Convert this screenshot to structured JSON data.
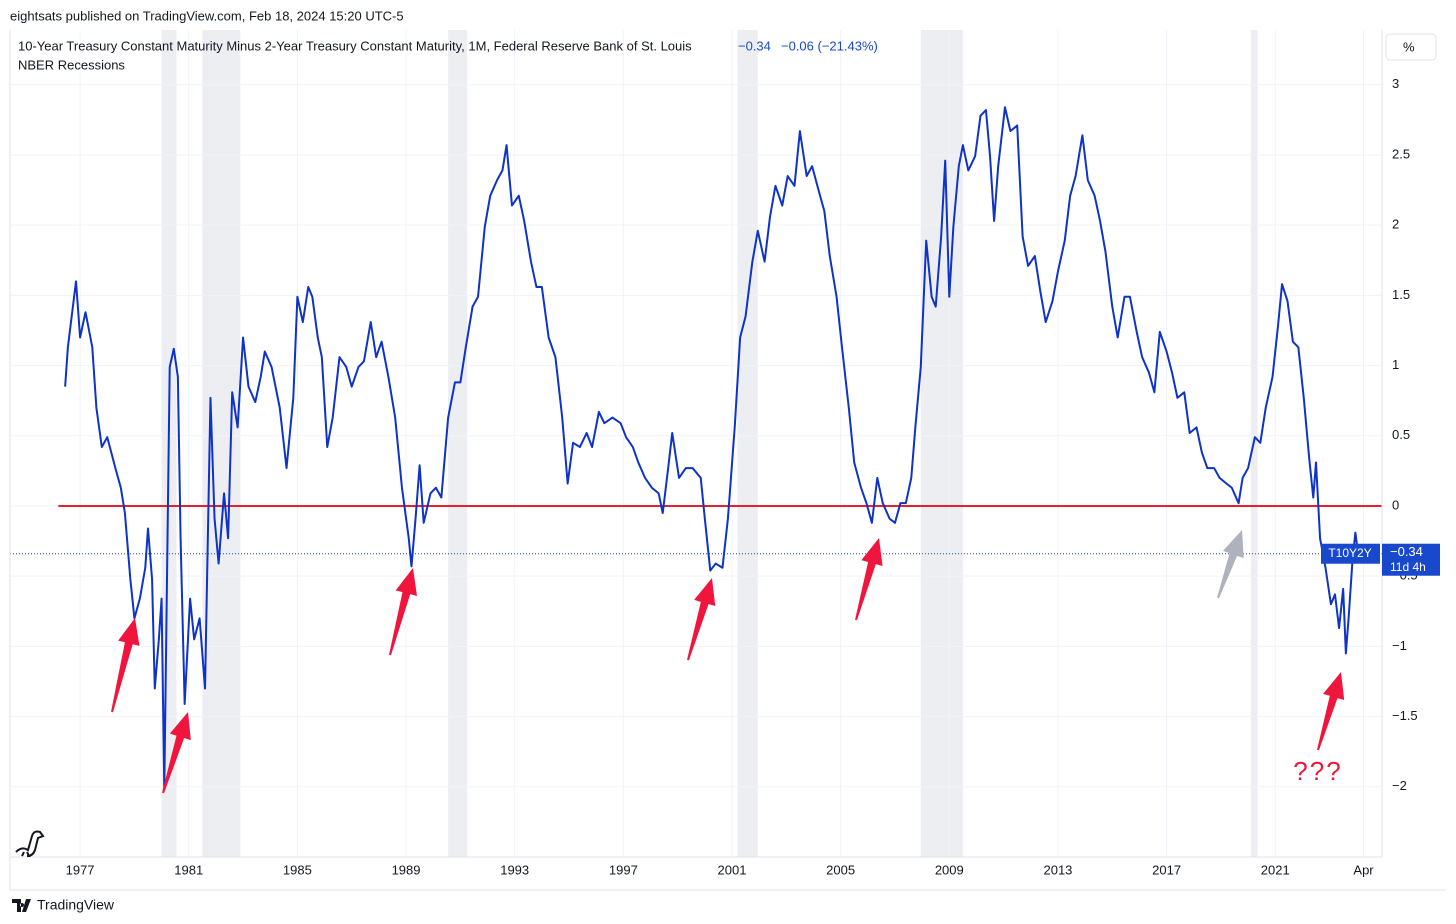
{
  "chart_data": {
    "type": "line",
    "publisher_note": "eightsats published on TradingView.com, Feb 18, 2024 15:20 UTC-5",
    "title": "10-Year Treasury Constant Maturity Minus 2-Year Treasury Constant Maturity, 1M, Federal Reserve Bank of St. Louis",
    "last_text": "−0.34",
    "change_text": "−0.06 (−21.43%)",
    "overlay_name": "NBER Recessions",
    "unit_button": "%",
    "symbol": "T10Y2Y",
    "countdown": "11d 4h",
    "price_line": {
      "value": -0.34,
      "label": "−0.34",
      "color": "#1848cc"
    },
    "annotation": "???",
    "footer": "TradingView",
    "reference_line": {
      "value": 0,
      "color": "#e8202e"
    },
    "recession_color": "#eceef2",
    "recessions": [
      {
        "start": 1980.0,
        "end": 1980.55
      },
      {
        "start": 1981.5,
        "end": 1982.9
      },
      {
        "start": 1990.55,
        "end": 1991.25
      },
      {
        "start": 2001.2,
        "end": 2001.95
      },
      {
        "start": 2007.95,
        "end": 2009.5
      },
      {
        "start": 2020.1,
        "end": 2020.35
      }
    ],
    "xlim": [
      1974.42,
      2024.93
    ],
    "ylim": [
      -2.5,
      3.39
    ],
    "xticks": [
      1977,
      1981,
      1985,
      1989,
      1993,
      1997,
      2001,
      2005,
      2009,
      2013,
      2017,
      2021,
      {
        "value": 2024.25,
        "label": "Apr"
      }
    ],
    "yticks": [
      {
        "value": -2,
        "label": "−2"
      },
      {
        "value": -1.5,
        "label": "−1.5"
      },
      {
        "value": -1,
        "label": "−1"
      },
      {
        "value": -0.5,
        "label": "−0.5"
      },
      0,
      0.5,
      1,
      1.5,
      2,
      2.5,
      3
    ],
    "grid": true,
    "x": [
      1976.45,
      1976.55,
      1976.85,
      1977.0,
      1977.2,
      1977.45,
      1977.6,
      1977.8,
      1978.0,
      1978.3,
      1978.5,
      1978.65,
      1978.85,
      1979.0,
      1979.2,
      1979.4,
      1979.5,
      1979.65,
      1979.75,
      1979.9,
      1980.0,
      1980.1,
      1980.3,
      1980.45,
      1980.6,
      1980.7,
      1980.85,
      1981.05,
      1981.2,
      1981.4,
      1981.6,
      1981.8,
      1981.95,
      1982.1,
      1982.3,
      1982.45,
      1982.6,
      1982.8,
      1983.0,
      1983.2,
      1983.45,
      1983.65,
      1983.8,
      1984.05,
      1984.35,
      1984.6,
      1984.85,
      1985.0,
      1985.2,
      1985.4,
      1985.55,
      1985.75,
      1985.9,
      1986.1,
      1986.3,
      1986.55,
      1986.8,
      1987.0,
      1987.25,
      1987.45,
      1987.7,
      1987.9,
      1988.1,
      1988.35,
      1988.6,
      1988.85,
      1989.1,
      1989.2,
      1989.35,
      1989.5,
      1989.65,
      1989.9,
      1990.1,
      1990.3,
      1990.55,
      1990.8,
      1991.0,
      1991.2,
      1991.45,
      1991.65,
      1991.9,
      1992.1,
      1992.35,
      1992.55,
      1992.7,
      1992.9,
      1993.15,
      1993.35,
      1993.6,
      1993.8,
      1994.0,
      1994.25,
      1994.5,
      1994.75,
      1994.95,
      1995.15,
      1995.4,
      1995.65,
      1995.85,
      1996.1,
      1996.3,
      1996.6,
      1996.9,
      1997.1,
      1997.35,
      1997.55,
      1997.8,
      1998.05,
      1998.3,
      1998.45,
      1998.65,
      1998.8,
      1999.05,
      1999.3,
      1999.55,
      1999.85,
      2000.0,
      2000.2,
      2000.4,
      2000.65,
      2000.85,
      2001.1,
      2001.3,
      2001.5,
      2001.75,
      2001.95,
      2002.2,
      2002.4,
      2002.6,
      2002.85,
      2003.05,
      2003.3,
      2003.5,
      2003.75,
      2003.95,
      2004.2,
      2004.4,
      2004.6,
      2004.85,
      2005.05,
      2005.3,
      2005.5,
      2005.75,
      2005.95,
      2006.15,
      2006.35,
      2006.55,
      2006.8,
      2007.0,
      2007.2,
      2007.4,
      2007.6,
      2007.75,
      2007.95,
      2008.15,
      2008.35,
      2008.5,
      2008.7,
      2008.85,
      2009.0,
      2009.15,
      2009.35,
      2009.5,
      2009.7,
      2009.95,
      2010.15,
      2010.35,
      2010.5,
      2010.65,
      2010.8,
      2011.05,
      2011.25,
      2011.5,
      2011.7,
      2011.9,
      2012.15,
      2012.35,
      2012.55,
      2012.8,
      2013.0,
      2013.25,
      2013.45,
      2013.65,
      2013.9,
      2014.1,
      2014.35,
      2014.55,
      2014.75,
      2015.0,
      2015.2,
      2015.45,
      2015.65,
      2015.9,
      2016.1,
      2016.35,
      2016.55,
      2016.75,
      2017.0,
      2017.2,
      2017.4,
      2017.65,
      2017.85,
      2018.1,
      2018.3,
      2018.5,
      2018.75,
      2018.95,
      2019.2,
      2019.4,
      2019.65,
      2019.8,
      2020.0,
      2020.25,
      2020.45,
      2020.65,
      2020.9,
      2021.1,
      2021.25,
      2021.45,
      2021.65,
      2021.85,
      2022.05,
      2022.25,
      2022.4,
      2022.5,
      2022.65,
      2022.85,
      2023.05,
      2023.2,
      2023.35,
      2023.5,
      2023.6,
      2023.7,
      2023.85,
      2023.95,
      2024.05
    ],
    "series": [
      {
        "color": "#0f33c8",
        "values": [
          0.85,
          1.13,
          1.6,
          1.2,
          1.38,
          1.13,
          0.7,
          0.42,
          0.49,
          0.27,
          0.13,
          -0.05,
          -0.52,
          -0.8,
          -0.66,
          -0.44,
          -0.16,
          -0.52,
          -1.3,
          -0.95,
          -0.66,
          -2.02,
          0.99,
          1.12,
          0.92,
          -0.23,
          -1.41,
          -0.66,
          -0.95,
          -0.8,
          -1.3,
          0.77,
          -0.09,
          -0.41,
          0.09,
          -0.23,
          0.81,
          0.56,
          1.2,
          0.85,
          0.74,
          0.92,
          1.1,
          0.99,
          0.7,
          0.27,
          0.77,
          1.49,
          1.31,
          1.56,
          1.49,
          1.2,
          1.06,
          0.42,
          0.63,
          1.06,
          0.99,
          0.85,
          0.99,
          1.03,
          1.31,
          1.06,
          1.17,
          0.92,
          0.63,
          0.13,
          -0.23,
          -0.43,
          -0.09,
          0.29,
          -0.12,
          0.09,
          0.13,
          0.06,
          0.63,
          0.88,
          0.88,
          1.13,
          1.42,
          1.49,
          1.99,
          2.21,
          2.32,
          2.39,
          2.57,
          2.14,
          2.21,
          2.03,
          1.74,
          1.56,
          1.56,
          1.2,
          1.06,
          0.63,
          0.16,
          0.45,
          0.42,
          0.52,
          0.42,
          0.67,
          0.59,
          0.63,
          0.59,
          0.49,
          0.42,
          0.31,
          0.2,
          0.13,
          0.09,
          -0.05,
          0.27,
          0.52,
          0.2,
          0.27,
          0.27,
          0.2,
          -0.09,
          -0.46,
          -0.41,
          -0.44,
          -0.09,
          0.56,
          1.2,
          1.35,
          1.74,
          1.96,
          1.74,
          2.06,
          2.28,
          2.14,
          2.35,
          2.28,
          2.67,
          2.35,
          2.42,
          2.24,
          2.1,
          1.78,
          1.49,
          1.13,
          0.7,
          0.31,
          0.13,
          0.02,
          -0.12,
          0.2,
          0.02,
          -0.09,
          -0.12,
          0.02,
          0.02,
          0.2,
          0.56,
          0.99,
          1.89,
          1.49,
          1.42,
          1.92,
          2.46,
          1.49,
          1.99,
          2.42,
          2.57,
          2.39,
          2.49,
          2.78,
          2.82,
          2.49,
          2.03,
          2.42,
          2.84,
          2.67,
          2.71,
          1.92,
          1.71,
          1.78,
          1.53,
          1.31,
          1.46,
          1.67,
          1.89,
          2.21,
          2.35,
          2.64,
          2.32,
          2.21,
          2.03,
          1.81,
          1.42,
          1.2,
          1.49,
          1.49,
          1.24,
          1.06,
          0.95,
          0.81,
          1.24,
          1.1,
          0.95,
          0.77,
          0.81,
          0.52,
          0.56,
          0.38,
          0.27,
          0.27,
          0.2,
          0.16,
          0.13,
          0.02,
          0.2,
          0.27,
          0.49,
          0.45,
          0.7,
          0.92,
          1.28,
          1.58,
          1.46,
          1.17,
          1.13,
          0.77,
          0.34,
          0.06,
          0.31,
          -0.23,
          -0.44,
          -0.7,
          -0.63,
          -0.87,
          -0.59,
          -1.05,
          -0.8,
          -0.37,
          -0.19,
          -0.34
        ]
      }
    ]
  }
}
